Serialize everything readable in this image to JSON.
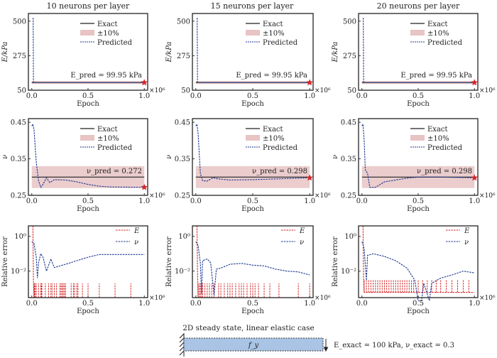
{
  "column_titles": [
    "10 neurons per layer",
    "15 neurons per layer",
    "20 neurons per layer"
  ],
  "x_label": "Epoch",
  "x_multiplier": "×10⁶",
  "legend": {
    "exact": "Exact",
    "band": "±10%",
    "predicted": "Predicted",
    "E": "E",
    "nu": "ν"
  },
  "colors": {
    "exact": "#222222",
    "band": "#e8c4c4",
    "predicted": "#1f3a93",
    "E_error": "#d62728",
    "star": "#d62728"
  },
  "schematic": {
    "title": "2D steady state, linear elastic case",
    "load_label": "f_y",
    "exact_label": "E_exact = 100 kPa, ν_exact = 0.3",
    "beam_color": "#a9c4e4"
  },
  "chart_data": [
    {
      "type": "line",
      "row": "E",
      "column": 0,
      "ylabel": "E/kPa",
      "xlim": [
        -0.03,
        1.03
      ],
      "ylim": [
        50,
        550
      ],
      "xticks": [
        "0.0",
        "0.5",
        "1.0"
      ],
      "yticks": [
        "50",
        "275",
        "500"
      ],
      "exact": 100,
      "band": [
        90,
        110
      ],
      "annotation": "E_pred = 99.95 kPa",
      "predicted": [
        [
          0.01,
          520
        ],
        [
          0.012,
          520
        ],
        [
          0.015,
          100
        ],
        [
          1,
          100
        ]
      ]
    },
    {
      "type": "line",
      "row": "E",
      "column": 1,
      "ylabel": "E/kPa",
      "xlim": [
        -0.03,
        1.03
      ],
      "ylim": [
        50,
        550
      ],
      "xticks": [
        "0.0",
        "0.5",
        "1.0"
      ],
      "yticks": [
        "50",
        "275",
        "500"
      ],
      "exact": 100,
      "band": [
        90,
        110
      ],
      "annotation": "E_pred = 99.95 kPa",
      "predicted": [
        [
          0.01,
          520
        ],
        [
          0.012,
          520
        ],
        [
          0.015,
          100
        ],
        [
          1,
          100
        ]
      ]
    },
    {
      "type": "line",
      "row": "E",
      "column": 2,
      "ylabel": "E/kPa",
      "xlim": [
        -0.03,
        1.03
      ],
      "ylim": [
        50,
        550
      ],
      "xticks": [
        "0.0",
        "0.5",
        "1.0"
      ],
      "yticks": [
        "50",
        "275",
        "500"
      ],
      "exact": 100,
      "band": [
        90,
        110
      ],
      "annotation": "E_pred = 99.95 kPa",
      "predicted": [
        [
          0.01,
          520
        ],
        [
          0.012,
          520
        ],
        [
          0.015,
          100
        ],
        [
          1,
          100
        ]
      ]
    },
    {
      "type": "line",
      "row": "nu",
      "column": 0,
      "ylabel": "ν",
      "xlim": [
        -0.03,
        1.03
      ],
      "ylim": [
        0.25,
        0.46
      ],
      "xticks": [
        "0.0",
        "0.5",
        "1.0"
      ],
      "yticks": [
        "0.25",
        "0.35",
        "0.45"
      ],
      "exact": 0.3,
      "band": [
        0.27,
        0.33
      ],
      "annotation": "ν_pred = 0.272",
      "predicted": [
        [
          0,
          0.44
        ],
        [
          0.01,
          0.445
        ],
        [
          0.02,
          0.43
        ],
        [
          0.04,
          0.34
        ],
        [
          0.06,
          0.29
        ],
        [
          0.08,
          0.272
        ],
        [
          0.1,
          0.28
        ],
        [
          0.13,
          0.298
        ],
        [
          0.16,
          0.285
        ],
        [
          0.2,
          0.293
        ],
        [
          0.3,
          0.292
        ],
        [
          0.4,
          0.287
        ],
        [
          0.5,
          0.28
        ],
        [
          0.6,
          0.275
        ],
        [
          0.7,
          0.273
        ],
        [
          1,
          0.272
        ]
      ]
    },
    {
      "type": "line",
      "row": "nu",
      "column": 1,
      "ylabel": "ν",
      "xlim": [
        -0.03,
        1.03
      ],
      "ylim": [
        0.25,
        0.46
      ],
      "xticks": [
        "0.0",
        "0.5",
        "1.0"
      ],
      "yticks": [
        "0.25",
        "0.35",
        "0.45"
      ],
      "exact": 0.3,
      "band": [
        0.27,
        0.33
      ],
      "annotation": "ν_pred = 0.298",
      "predicted": [
        [
          0,
          0.44
        ],
        [
          0.01,
          0.445
        ],
        [
          0.02,
          0.42
        ],
        [
          0.04,
          0.31
        ],
        [
          0.06,
          0.29
        ],
        [
          0.1,
          0.289
        ],
        [
          0.15,
          0.298
        ],
        [
          0.2,
          0.295
        ],
        [
          0.3,
          0.292
        ],
        [
          0.5,
          0.293
        ],
        [
          0.7,
          0.295
        ],
        [
          1,
          0.298
        ]
      ]
    },
    {
      "type": "line",
      "row": "nu",
      "column": 2,
      "ylabel": "ν",
      "xlim": [
        -0.03,
        1.03
      ],
      "ylim": [
        0.25,
        0.46
      ],
      "xticks": [
        "0.0",
        "0.5",
        "1.0"
      ],
      "yticks": [
        "0.25",
        "0.35",
        "0.45"
      ],
      "exact": 0.3,
      "band": [
        0.27,
        0.33
      ],
      "annotation": "ν_pred = 0.298",
      "predicted": [
        [
          0,
          0.44
        ],
        [
          0.01,
          0.445
        ],
        [
          0.02,
          0.4
        ],
        [
          0.03,
          0.32
        ],
        [
          0.05,
          0.31
        ],
        [
          0.07,
          0.272
        ],
        [
          0.12,
          0.272
        ],
        [
          0.2,
          0.287
        ],
        [
          0.3,
          0.292
        ],
        [
          0.4,
          0.297
        ],
        [
          0.5,
          0.3
        ],
        [
          0.7,
          0.3
        ],
        [
          1,
          0.298
        ]
      ]
    },
    {
      "type": "line",
      "row": "error",
      "column": 0,
      "ylabel": "Relative error",
      "yscale": "log",
      "xlim": [
        -0.03,
        1.03
      ],
      "ylim": [
        0.0003,
        4
      ],
      "xticks": [
        "0.0",
        "0.5",
        "1.0"
      ],
      "yticks": [
        "10⁰",
        "10⁻²"
      ],
      "ytick_values": [
        1,
        0.01
      ],
      "E_error": {
        "initial": [
          [
            0.01,
            4
          ],
          [
            0.015,
            0.003
          ]
        ],
        "baseline": 0.0003,
        "spike_level": 0.002,
        "spikes": [
          0.02,
          0.025,
          0.03,
          0.04,
          0.06,
          0.08,
          0.085,
          0.09,
          0.12,
          0.15,
          0.17,
          0.18,
          0.2,
          0.22,
          0.25,
          0.26,
          0.27,
          0.28,
          0.29,
          0.3,
          0.35,
          0.37,
          0.38,
          0.4,
          0.41,
          0.45,
          0.5,
          0.6,
          0.74,
          0.88
        ]
      },
      "nu_error": [
        [
          0,
          0.5
        ],
        [
          0.02,
          0.4
        ],
        [
          0.04,
          0.063
        ],
        [
          0.05,
          0.004
        ],
        [
          0.06,
          0.03
        ],
        [
          0.08,
          0.1
        ],
        [
          0.1,
          0.063
        ],
        [
          0.13,
          0.01
        ],
        [
          0.17,
          0.05
        ],
        [
          0.2,
          0.016
        ],
        [
          0.3,
          0.025
        ],
        [
          0.5,
          0.063
        ],
        [
          0.6,
          0.09
        ],
        [
          1,
          0.09
        ]
      ]
    },
    {
      "type": "line",
      "row": "error",
      "column": 1,
      "ylabel": "Relative error",
      "yscale": "log",
      "xlim": [
        -0.03,
        1.03
      ],
      "ylim": [
        0.0003,
        4
      ],
      "xticks": [
        "0.0",
        "0.5",
        "1.0"
      ],
      "yticks": [
        "10⁰",
        "10⁻²"
      ],
      "ytick_values": [
        1,
        0.01
      ],
      "E_error": {
        "initial": [
          [
            0.01,
            4
          ],
          [
            0.015,
            0.01
          ]
        ],
        "baseline": 0.0003,
        "spike_level": 0.002,
        "spikes": [
          0.02,
          0.03,
          0.04,
          0.05,
          0.06,
          0.08,
          0.1,
          0.12,
          0.14,
          0.16,
          0.2,
          0.22,
          0.25,
          0.28,
          0.3,
          0.32,
          0.35,
          0.38,
          0.4,
          0.42,
          0.45,
          0.48,
          0.5,
          0.52,
          0.55,
          0.6,
          0.65,
          0.73,
          0.9,
          1.0
        ]
      },
      "nu_error": [
        [
          0,
          0.5
        ],
        [
          0.02,
          0.3
        ],
        [
          0.04,
          0.03
        ],
        [
          0.05,
          0.0005
        ],
        [
          0.06,
          0.04
        ],
        [
          0.1,
          0.05
        ],
        [
          0.13,
          0.03
        ],
        [
          0.16,
          0.0004
        ],
        [
          0.18,
          0.013
        ],
        [
          0.22,
          0.015
        ],
        [
          0.3,
          0.025
        ],
        [
          0.4,
          0.028
        ],
        [
          0.5,
          0.022
        ],
        [
          0.6,
          0.02
        ],
        [
          0.7,
          0.013
        ],
        [
          0.8,
          0.01
        ],
        [
          0.9,
          0.009
        ],
        [
          1,
          0.006
        ]
      ]
    },
    {
      "type": "line",
      "row": "error",
      "column": 2,
      "ylabel": "Relative error",
      "yscale": "log",
      "xlim": [
        -0.03,
        1.03
      ],
      "ylim": [
        0.0003,
        4
      ],
      "xticks": [
        "0.0",
        "0.5",
        "1.0"
      ],
      "yticks": [
        "10⁰",
        "10⁻²"
      ],
      "ytick_values": [
        1,
        0.01
      ],
      "E_error": {
        "initial": [
          [
            0.01,
            4
          ],
          [
            0.015,
            0.004
          ]
        ],
        "baseline": 0.0006,
        "spike_level": 0.003,
        "spikes": [
          0.02,
          0.04,
          0.06,
          0.08,
          0.1,
          0.12,
          0.14,
          0.16,
          0.18,
          0.2,
          0.22,
          0.24,
          0.26,
          0.28,
          0.3,
          0.32,
          0.34,
          0.36,
          0.38,
          0.4,
          0.42,
          0.44,
          0.46,
          0.5,
          0.54,
          0.58,
          0.62,
          0.66,
          0.7,
          0.75,
          0.8,
          0.85,
          0.9,
          0.95
        ]
      },
      "nu_error": [
        [
          0,
          0.5
        ],
        [
          0.02,
          0.2
        ],
        [
          0.04,
          0.003
        ],
        [
          0.05,
          0.08
        ],
        [
          0.1,
          0.1
        ],
        [
          0.2,
          0.07
        ],
        [
          0.3,
          0.04
        ],
        [
          0.4,
          0.015
        ],
        [
          0.47,
          0.003
        ],
        [
          0.5,
          0.0002
        ],
        [
          0.53,
          0.0002
        ],
        [
          0.55,
          0.002
        ],
        [
          0.6,
          0.0002
        ],
        [
          0.62,
          0.002
        ],
        [
          0.7,
          0.004
        ],
        [
          0.8,
          0.006
        ],
        [
          0.9,
          0.01
        ],
        [
          1,
          0.008
        ]
      ]
    }
  ]
}
